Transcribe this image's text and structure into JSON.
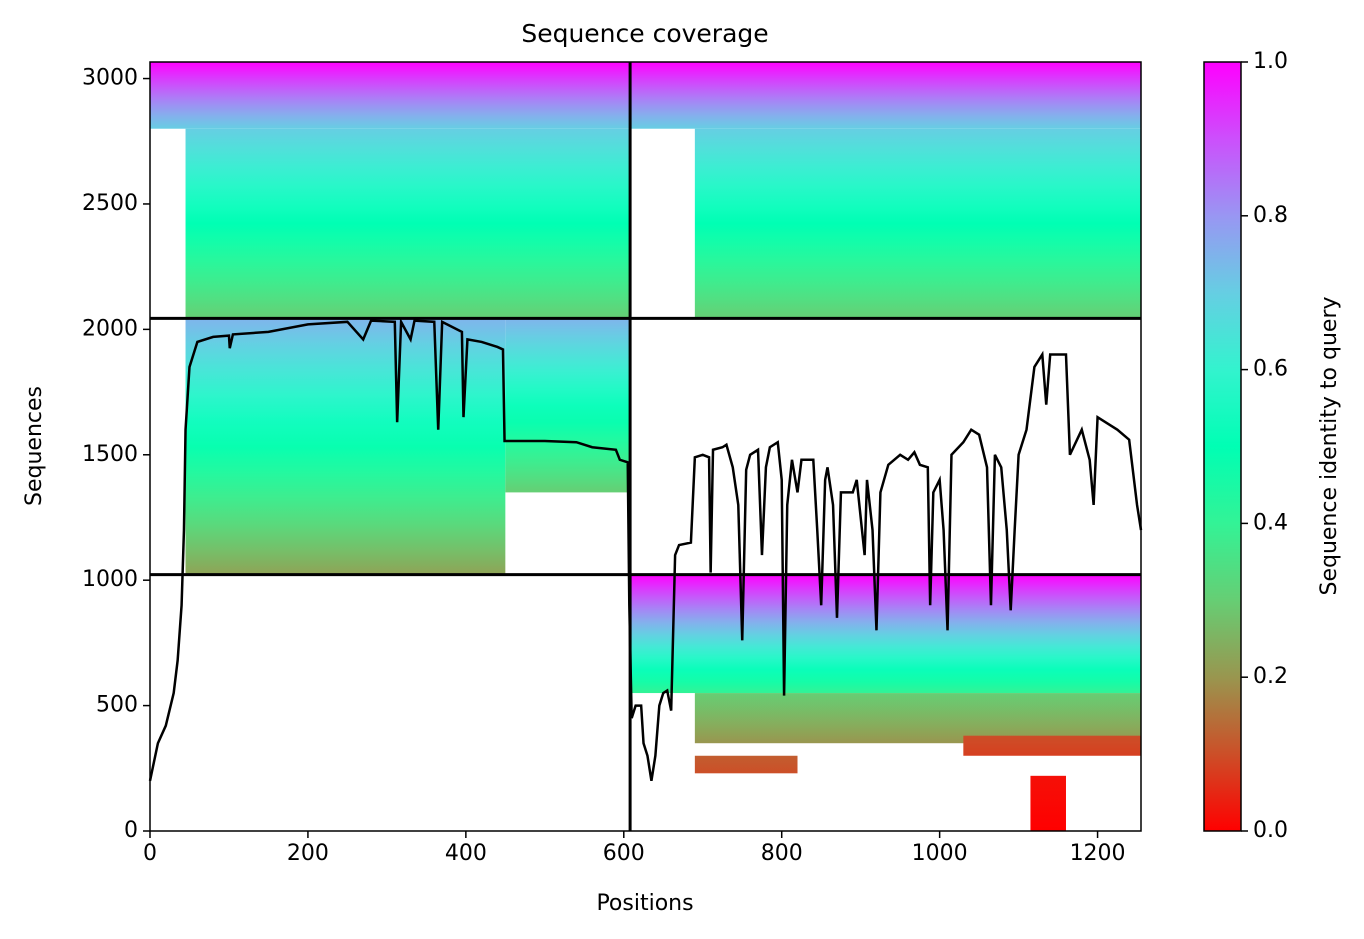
{
  "chart_data": {
    "type": "coverage",
    "title": "Sequence coverage",
    "xlabel": "Positions",
    "ylabel": "Sequences",
    "xlim": [
      0,
      1255
    ],
    "xticks": [
      0,
      200,
      400,
      600,
      800,
      1000,
      1200
    ],
    "ylim": [
      0,
      3066
    ],
    "yticks": [
      0,
      500,
      1000,
      1500,
      2000,
      2500,
      3000
    ],
    "colormap": "rainbow_r",
    "blocks": [
      {
        "x": [
          0,
          608
        ],
        "y": [
          2800,
          3066
        ],
        "identity": [
          0.7,
          1.0
        ]
      },
      {
        "x": [
          45,
          608
        ],
        "y": [
          2044,
          2800
        ],
        "identity": [
          0.3,
          0.7
        ]
      },
      {
        "x": [
          608,
          1255
        ],
        "y": [
          2800,
          3066
        ],
        "identity": [
          0.7,
          1.0
        ]
      },
      {
        "x": [
          690,
          1255
        ],
        "y": [
          2044,
          2800
        ],
        "identity": [
          0.3,
          0.7
        ]
      },
      {
        "x": [
          45,
          450
        ],
        "y": [
          1022,
          2044
        ],
        "identity": [
          0.22,
          0.75
        ]
      },
      {
        "x": [
          450,
          608
        ],
        "y": [
          1350,
          2044
        ],
        "identity": [
          0.3,
          0.75
        ]
      },
      {
        "x": [
          608,
          1255
        ],
        "y": [
          550,
          1022
        ],
        "identity": [
          0.4,
          1.0
        ]
      },
      {
        "x": [
          690,
          1255
        ],
        "y": [
          350,
          550
        ],
        "identity": [
          0.2,
          0.3
        ]
      },
      {
        "x": [
          690,
          820
        ],
        "y": [
          230,
          300
        ],
        "identity": [
          0.1,
          0.12
        ]
      },
      {
        "x": [
          1030,
          1255
        ],
        "y": [
          300,
          380
        ],
        "identity": [
          0.08,
          0.1
        ]
      },
      {
        "x": [
          1115,
          1160
        ],
        "y": [
          0,
          220
        ],
        "identity": [
          0.0,
          0.02
        ]
      }
    ],
    "dividers_x": [
      608
    ],
    "dividers_y": [
      1022,
      2044
    ],
    "series": [
      {
        "name": "coverage",
        "color": "#000000",
        "x": [
          0,
          10,
          20,
          30,
          35,
          40,
          43,
          45,
          50,
          60,
          80,
          100,
          101,
          105,
          150,
          200,
          250,
          270,
          280,
          310,
          313,
          318,
          330,
          335,
          360,
          365,
          370,
          395,
          397,
          402,
          420,
          440,
          447,
          449,
          500,
          540,
          560,
          590,
          595,
          605,
          607,
          610,
          615,
          622,
          625,
          630,
          635,
          640,
          645,
          650,
          655,
          660,
          665,
          670,
          685,
          690,
          700,
          708,
          710,
          713,
          725,
          730,
          738,
          745,
          750,
          755,
          760,
          770,
          775,
          780,
          785,
          795,
          800,
          803,
          807,
          813,
          820,
          825,
          840,
          845,
          850,
          855,
          858,
          865,
          870,
          875,
          890,
          895,
          905,
          908,
          915,
          920,
          925,
          935,
          950,
          960,
          968,
          975,
          985,
          988,
          992,
          1000,
          1005,
          1010,
          1015,
          1030,
          1040,
          1050,
          1060,
          1065,
          1070,
          1078,
          1085,
          1090,
          1095,
          1100,
          1110,
          1120,
          1130,
          1135,
          1140,
          1160,
          1165,
          1180,
          1190,
          1195,
          1200,
          1215,
          1225,
          1240,
          1250,
          1255
        ],
        "values": [
          200,
          350,
          420,
          550,
          680,
          900,
          1200,
          1600,
          1850,
          1950,
          1970,
          1975,
          1925,
          1980,
          1990,
          2020,
          2030,
          1960,
          2035,
          2030,
          1630,
          2030,
          1960,
          2035,
          2030,
          1600,
          2030,
          1990,
          1650,
          1960,
          1950,
          1930,
          1920,
          1555,
          1555,
          1550,
          1530,
          1520,
          1480,
          1470,
          900,
          450,
          500,
          500,
          350,
          300,
          200,
          300,
          500,
          550,
          560,
          480,
          1100,
          1140,
          1150,
          1490,
          1500,
          1490,
          1030,
          1520,
          1530,
          1540,
          1450,
          1300,
          760,
          1440,
          1500,
          1520,
          1100,
          1450,
          1530,
          1550,
          1400,
          540,
          1300,
          1480,
          1350,
          1480,
          1480,
          1200,
          900,
          1400,
          1450,
          1300,
          850,
          1350,
          1350,
          1400,
          1100,
          1400,
          1200,
          800,
          1350,
          1460,
          1500,
          1480,
          1510,
          1460,
          1450,
          900,
          1350,
          1400,
          1200,
          800,
          1500,
          1550,
          1600,
          1580,
          1450,
          900,
          1500,
          1450,
          1200,
          880,
          1200,
          1500,
          1600,
          1850,
          1900,
          1700,
          1900,
          1900,
          1500,
          1600,
          1480,
          1300,
          1650,
          1620,
          1600,
          1560,
          1300,
          1200
        ]
      }
    ],
    "colorbar": {
      "label": "Sequence identity to query",
      "lim": [
        0,
        1
      ],
      "ticks": [
        {
          "value": 0,
          "label": "0.0"
        },
        {
          "value": 0.2,
          "label": "0.2"
        },
        {
          "value": 0.4,
          "label": "0.4"
        },
        {
          "value": 0.6,
          "label": "0.6"
        },
        {
          "value": 0.8,
          "label": "0.8"
        },
        {
          "value": 1,
          "label": "1.0"
        }
      ]
    }
  }
}
